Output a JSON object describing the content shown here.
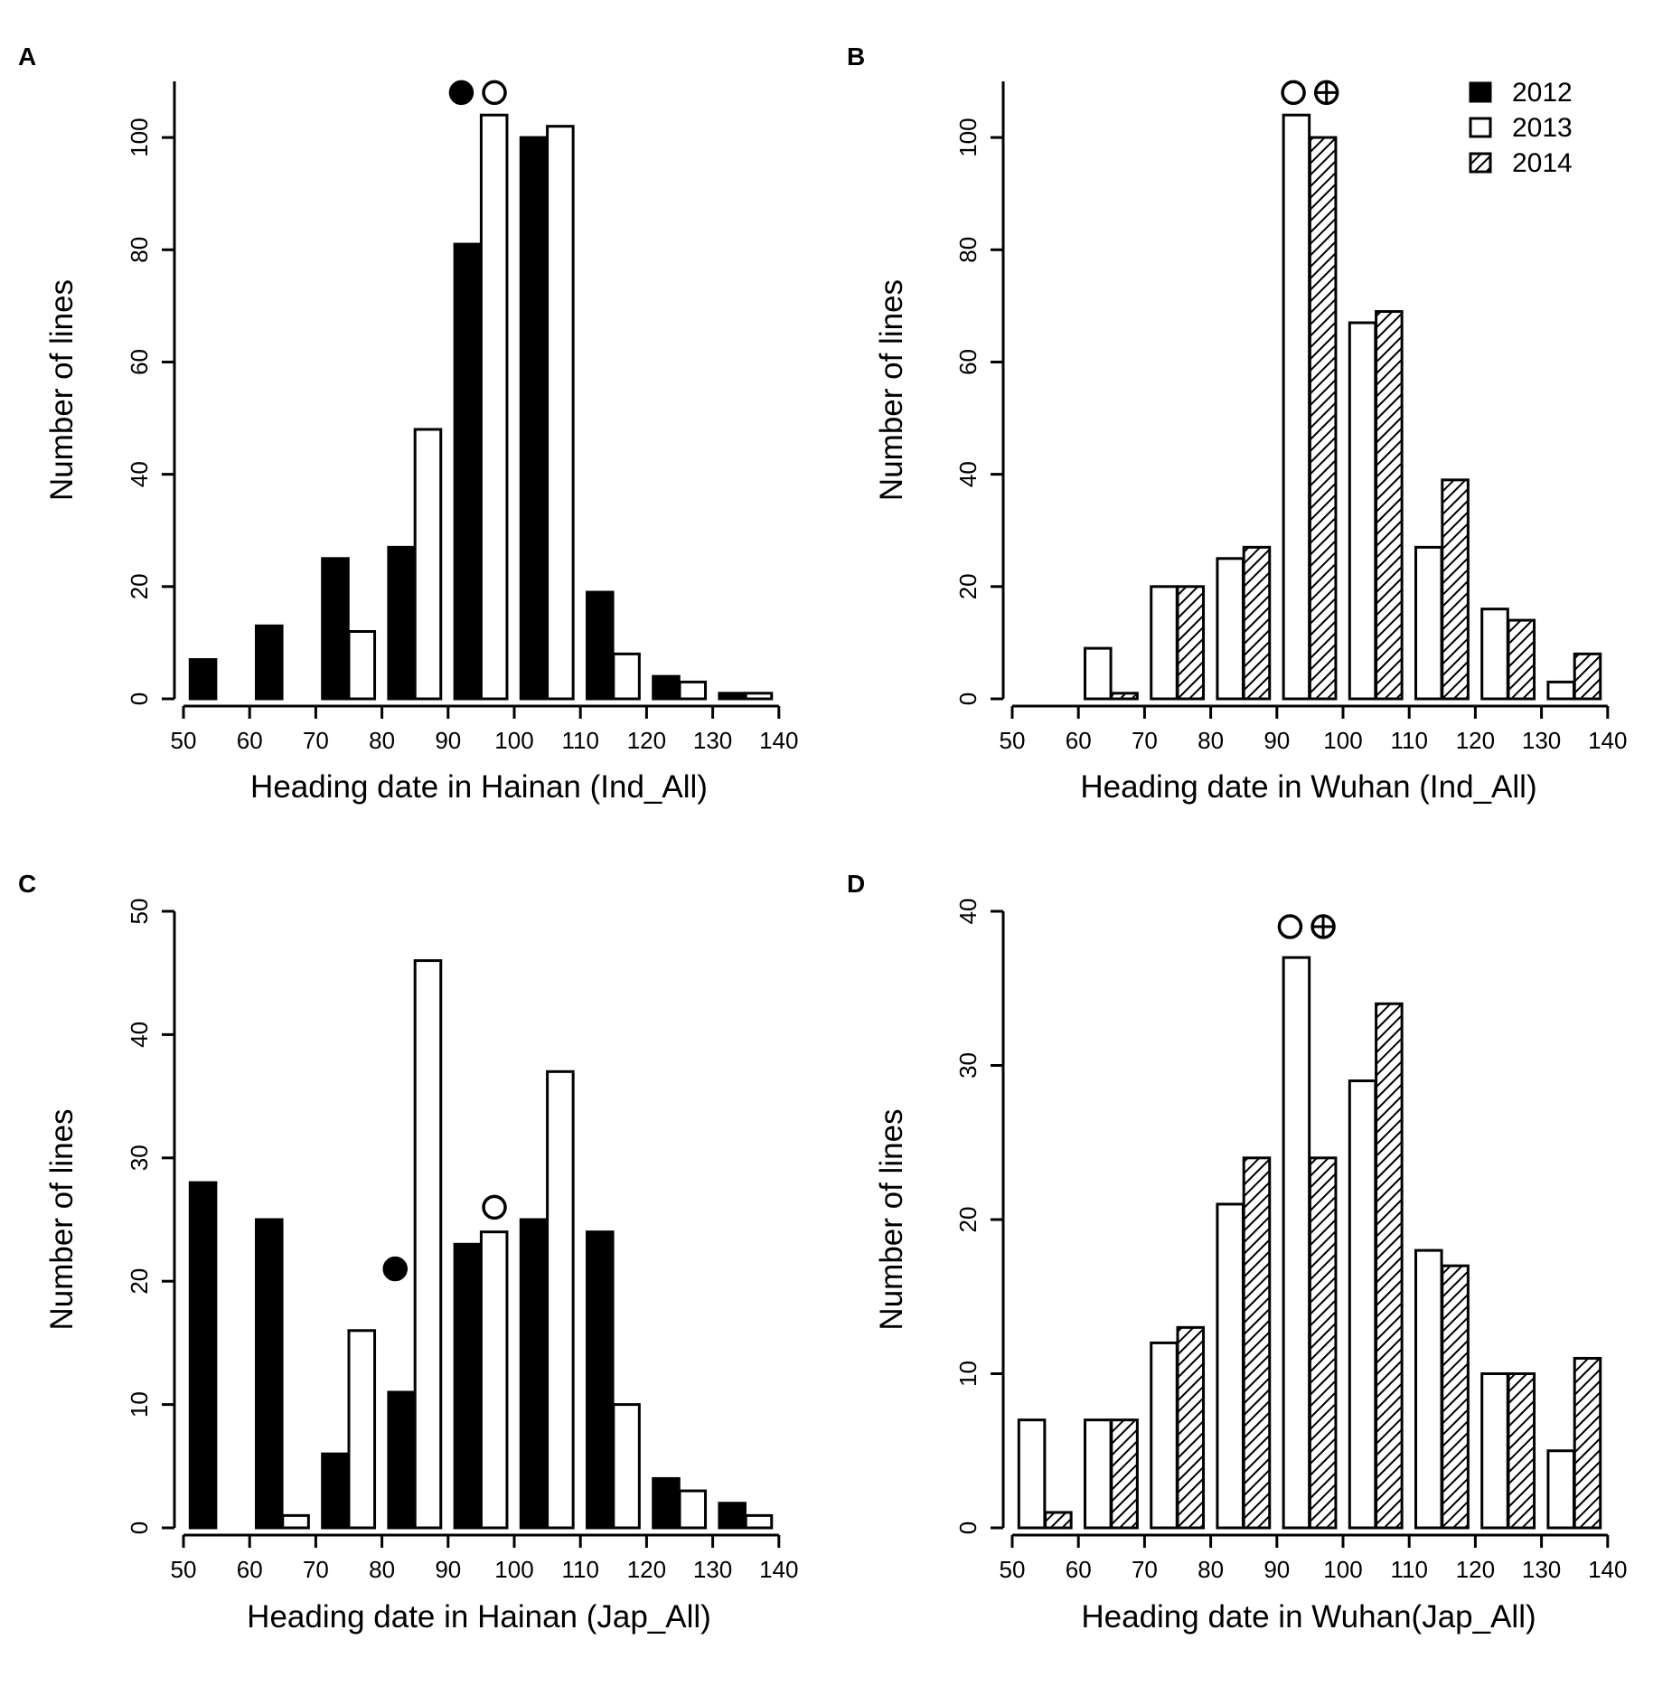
{
  "chart_data": [
    {
      "type": "bar",
      "panel_label": "A",
      "xlabel": "Heading date in Hainan (Ind_All)",
      "ylabel": "Number of lines",
      "xlim": [
        48,
        140
      ],
      "ylim": [
        0,
        110
      ],
      "xticks": [
        50,
        60,
        70,
        80,
        90,
        100,
        110,
        120,
        130,
        140
      ],
      "yticks": [
        0,
        20,
        40,
        60,
        80,
        100
      ],
      "bin_width": 10,
      "series": [
        {
          "name": "2012",
          "style": "solid",
          "bins": [
            50,
            60,
            70,
            80,
            90,
            100,
            110,
            120,
            130
          ],
          "values": [
            7,
            13,
            25,
            27,
            81,
            100,
            19,
            4,
            1
          ]
        },
        {
          "name": "2013",
          "style": "open",
          "bins": [
            70,
            80,
            90,
            100,
            110,
            120,
            130
          ],
          "values": [
            12,
            48,
            104,
            102,
            8,
            3,
            1
          ]
        }
      ],
      "mean_markers": [
        {
          "series": "2012",
          "style": "solid",
          "x": 92,
          "y": 108
        },
        {
          "series": "2013",
          "style": "open",
          "x": 97,
          "y": 108
        }
      ],
      "legend": null
    },
    {
      "type": "bar",
      "panel_label": "B",
      "xlabel": "Heading date in Wuhan (Ind_All)",
      "ylabel": "Number of lines",
      "xlim": [
        48,
        140
      ],
      "ylim": [
        0,
        110
      ],
      "xticks": [
        50,
        60,
        70,
        80,
        90,
        100,
        110,
        120,
        130,
        140
      ],
      "yticks": [
        0,
        20,
        40,
        60,
        80,
        100
      ],
      "bin_width": 10,
      "series": [
        {
          "name": "2013",
          "style": "open",
          "bins": [
            60,
            70,
            80,
            90,
            100,
            110,
            120,
            130
          ],
          "values": [
            9,
            20,
            25,
            104,
            67,
            27,
            16,
            3
          ]
        },
        {
          "name": "2014",
          "style": "hatched",
          "bins": [
            60,
            70,
            80,
            90,
            100,
            110,
            120,
            130
          ],
          "values": [
            1,
            20,
            27,
            100,
            69,
            39,
            14,
            8
          ]
        }
      ],
      "mean_markers": [
        {
          "series": "2013",
          "style": "open",
          "x": 92.5,
          "y": 108
        },
        {
          "series": "2014",
          "style": "crossed",
          "x": 97.5,
          "y": 108
        }
      ],
      "legend": {
        "position": "top-right",
        "entries": [
          {
            "label": "2012",
            "style": "solid"
          },
          {
            "label": "2013",
            "style": "open"
          },
          {
            "label": "2014",
            "style": "hatched"
          }
        ]
      }
    },
    {
      "type": "bar",
      "panel_label": "C",
      "xlabel": "Heading date in Hainan (Jap_All)",
      "ylabel": "Number of lines",
      "xlim": [
        48,
        140
      ],
      "ylim": [
        0,
        50
      ],
      "xticks": [
        50,
        60,
        70,
        80,
        90,
        100,
        110,
        120,
        130,
        140
      ],
      "yticks": [
        0,
        10,
        20,
        30,
        40,
        50
      ],
      "bin_width": 10,
      "series": [
        {
          "name": "2012",
          "style": "solid",
          "bins": [
            50,
            60,
            70,
            80,
            90,
            100,
            110,
            120,
            130
          ],
          "values": [
            28,
            25,
            6,
            11,
            23,
            25,
            24,
            4,
            2
          ]
        },
        {
          "name": "2013",
          "style": "open",
          "bins": [
            60,
            70,
            80,
            90,
            100,
            110,
            120,
            130
          ],
          "values": [
            1,
            16,
            46,
            24,
            37,
            10,
            3,
            1
          ]
        }
      ],
      "mean_markers": [
        {
          "series": "2012",
          "style": "solid",
          "x": 82,
          "y": 21
        },
        {
          "series": "2013",
          "style": "open",
          "x": 97,
          "y": 26
        }
      ],
      "legend": null
    },
    {
      "type": "bar",
      "panel_label": "D",
      "xlabel": "Heading date in Wuhan(Jap_All)",
      "ylabel": "Number of lines",
      "xlim": [
        48,
        140
      ],
      "ylim": [
        0,
        40
      ],
      "xticks": [
        50,
        60,
        70,
        80,
        90,
        100,
        110,
        120,
        130,
        140
      ],
      "yticks": [
        0,
        10,
        20,
        30,
        40
      ],
      "bin_width": 10,
      "series": [
        {
          "name": "2013",
          "style": "open",
          "bins": [
            50,
            60,
            70,
            80,
            90,
            100,
            110,
            120,
            130
          ],
          "values": [
            7,
            7,
            12,
            21,
            37,
            29,
            18,
            10,
            5
          ]
        },
        {
          "name": "2014",
          "style": "hatched",
          "bins": [
            50,
            60,
            70,
            80,
            90,
            100,
            110,
            120,
            130
          ],
          "values": [
            1,
            7,
            13,
            24,
            24,
            34,
            17,
            10,
            11
          ]
        }
      ],
      "mean_markers": [
        {
          "series": "2013",
          "style": "open",
          "x": 92,
          "y": 39
        },
        {
          "series": "2014",
          "style": "crossed",
          "x": 97,
          "y": 39
        }
      ],
      "legend": null
    }
  ]
}
